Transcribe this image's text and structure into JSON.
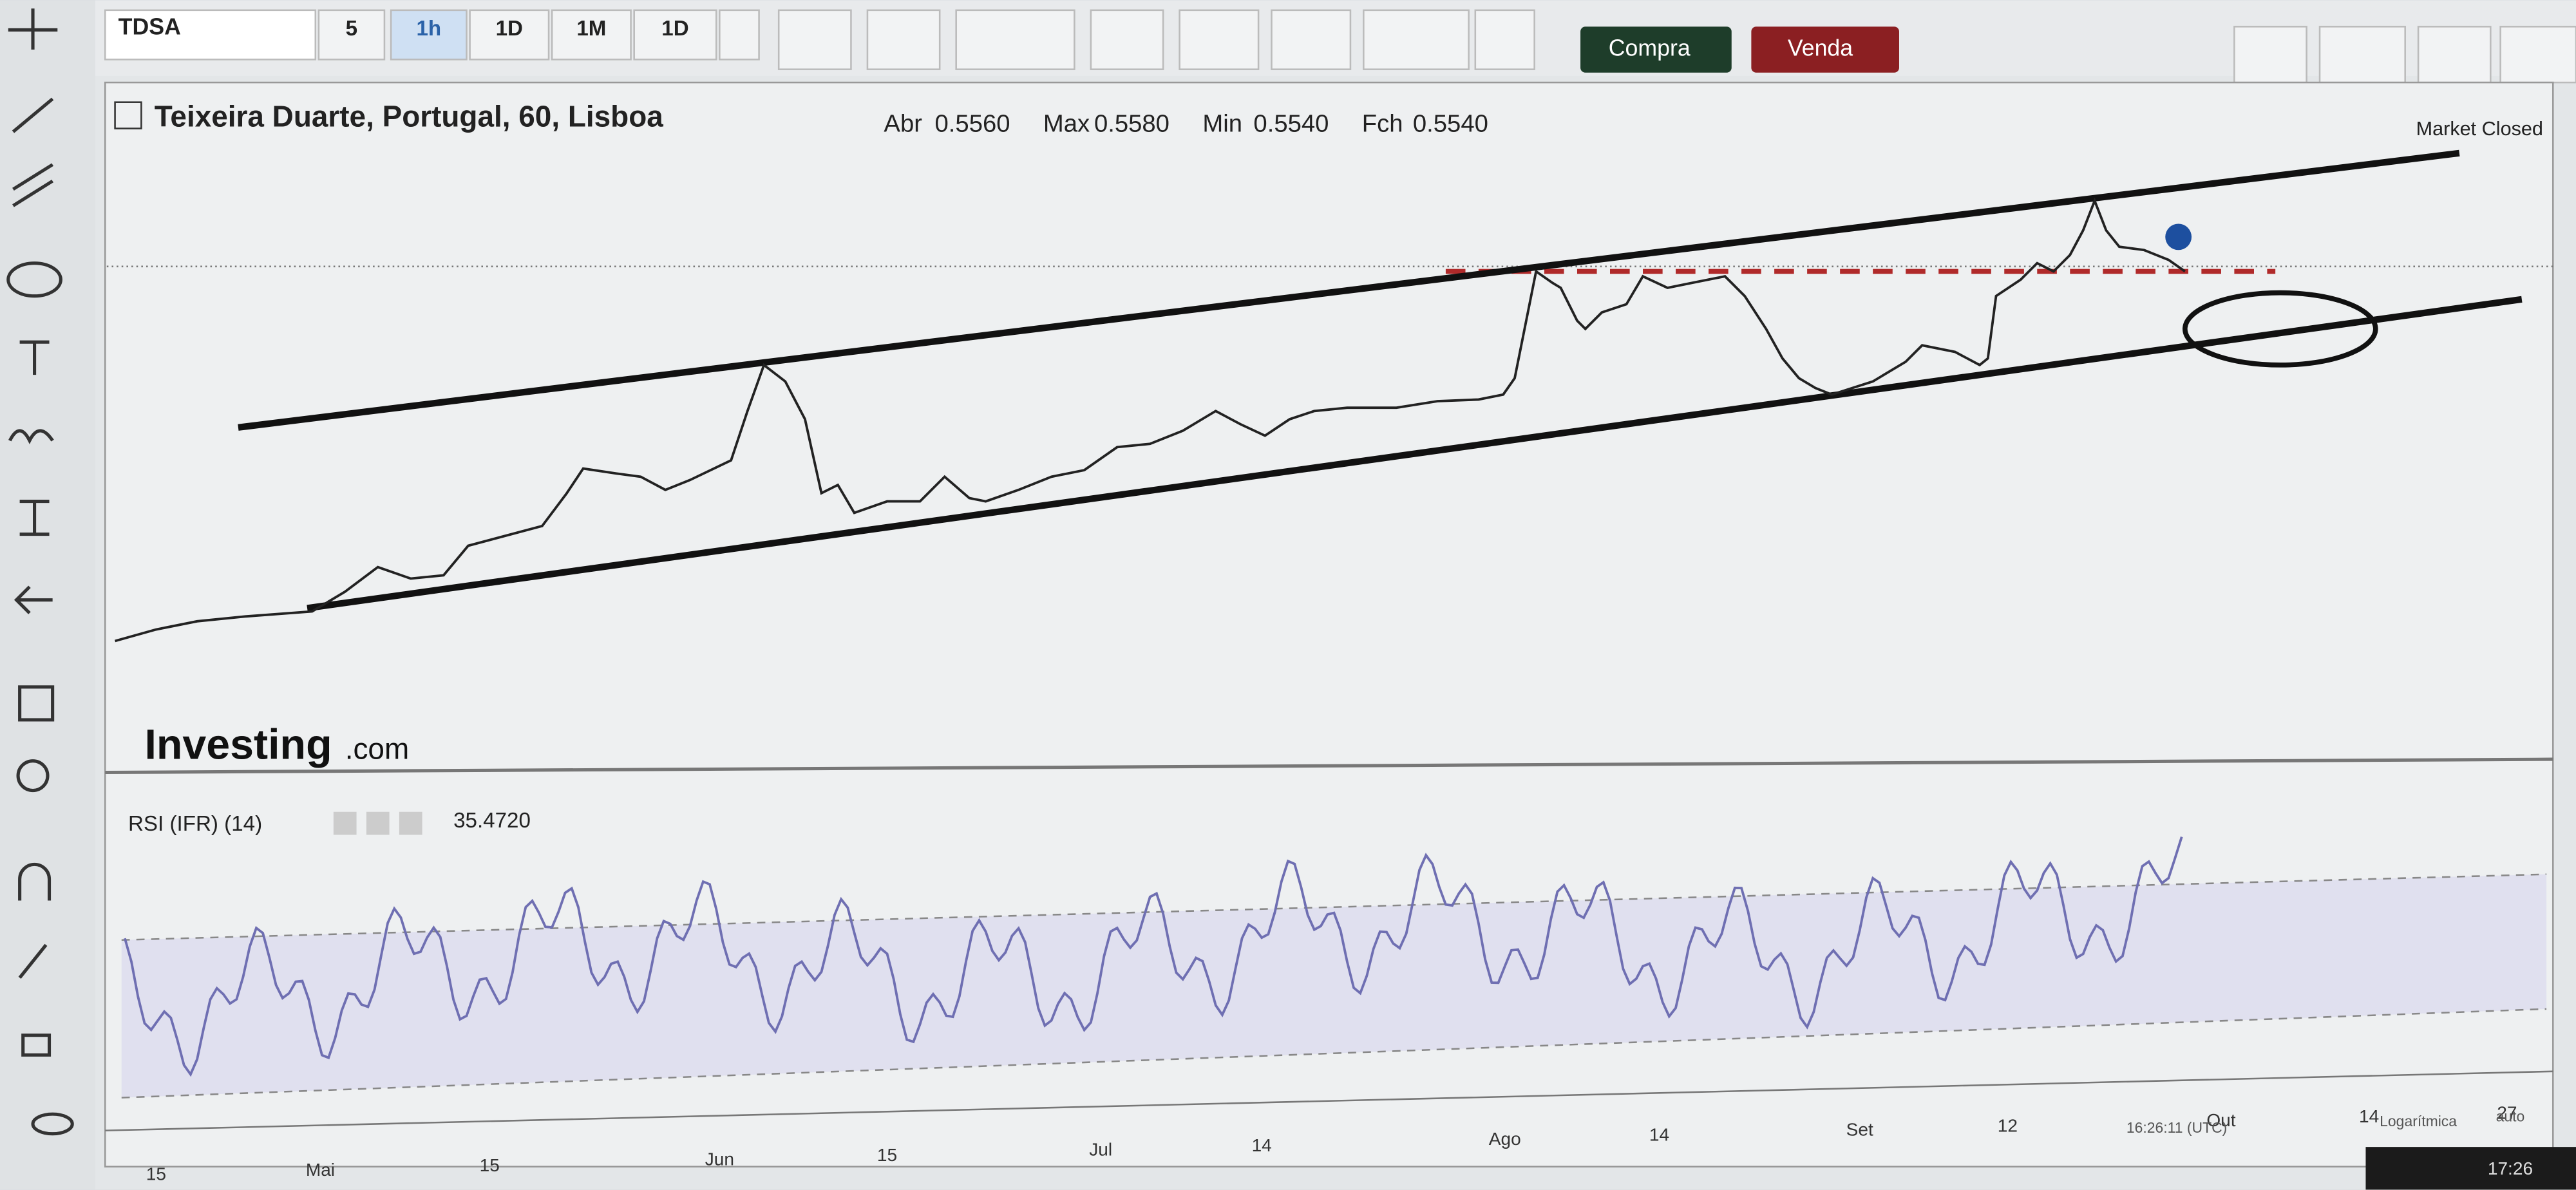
{
  "toolbar": {
    "symbol": "TDSA",
    "intervals": [
      "5",
      "1h",
      "1D",
      "1M",
      "1D"
    ],
    "buy": "Compra",
    "sell": "Venda"
  },
  "chart": {
    "title": "Teixeira Duarte, Portugal, 60, Lisboa",
    "ohlc": [
      {
        "label": "Abr",
        "value": "0.5560"
      },
      {
        "label": "Max",
        "value": "0.5580"
      },
      {
        "label": "Min",
        "value": "0.5540"
      },
      {
        "label": "Fch",
        "value": "0.5540"
      }
    ],
    "status": "Market Closed",
    "watermark": "Investing",
    "watermark_suffix": ".com"
  },
  "rsi": {
    "label": "RSI (IFR) (14)",
    "value": "35.4720"
  },
  "x_axis": [
    "15",
    "Mai",
    "15",
    "Jun",
    "15",
    "Jul",
    "14",
    "Ago",
    "14",
    "Set",
    "12",
    "Out",
    "14",
    "27"
  ],
  "footer": {
    "time": "16:26:11 (UTC)",
    "scale": "Logarítmica",
    "auto": "auto"
  },
  "clock": "17:26"
}
